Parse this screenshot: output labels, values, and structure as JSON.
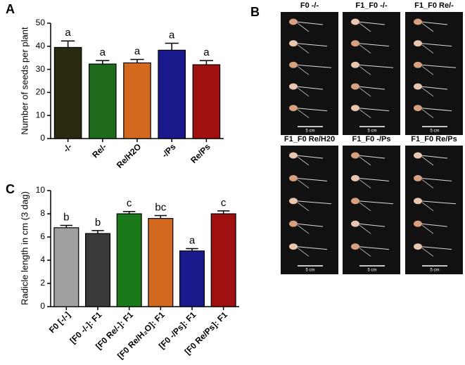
{
  "panel_labels": [
    "A",
    "B",
    "C"
  ],
  "chart_data": [
    {
      "type": "bar",
      "ylabel": "Number of seeds per plant",
      "categories": [
        "-/-",
        "Re/-",
        "Re/H2O",
        "-/Ps",
        "Re/Ps"
      ],
      "values": [
        39.5,
        32.3,
        32.8,
        38.3,
        32.0
      ],
      "errors": [
        2.8,
        1.5,
        1.5,
        3.0,
        1.8
      ],
      "letters": [
        "a",
        "a",
        "a",
        "a",
        "a"
      ],
      "colors": [
        "#2a2a10",
        "#1e6b1e",
        "#d2691e",
        "#1a1a8c",
        "#a01010"
      ],
      "ylim": [
        0,
        50
      ],
      "yticks": [
        0,
        10,
        20,
        30,
        40,
        50
      ]
    },
    {
      "type": "bar",
      "ylabel": "Radicle length in cm (3 dag)",
      "categories": [
        "F0 [-/-]",
        "[F0 -/-]: F1",
        "[F0 Re/-]: F1",
        "[F0 Re/H₂O]: F1",
        "[F0 -/Ps]: F1",
        "[F0 Re/Ps]: F1"
      ],
      "values": [
        6.8,
        6.3,
        8.0,
        7.6,
        4.8,
        8.0
      ],
      "errors": [
        0.2,
        0.25,
        0.2,
        0.25,
        0.2,
        0.25
      ],
      "letters": [
        "b",
        "b",
        "c",
        "bc",
        "a",
        "c"
      ],
      "colors": [
        "#a0a0a0",
        "#3a3a3a",
        "#1a7a1a",
        "#d2691e",
        "#1a1a8c",
        "#a01010"
      ],
      "ylim": [
        0,
        10
      ],
      "yticks": [
        0,
        2,
        4,
        6,
        8,
        10
      ]
    }
  ],
  "photos": [
    {
      "title": "F0 -/-",
      "scale": "5 cm"
    },
    {
      "title": "F1_F0 -/-",
      "scale": "5 cm"
    },
    {
      "title": "F1_F0 Re/-",
      "scale": "5 cm"
    },
    {
      "title": "F1_F0 Re/H20",
      "scale": "5 cm"
    },
    {
      "title": "F1_F0 -/Ps",
      "scale": "5 cm"
    },
    {
      "title": "F1_F0 Re/Ps",
      "scale": "5 cm"
    }
  ]
}
